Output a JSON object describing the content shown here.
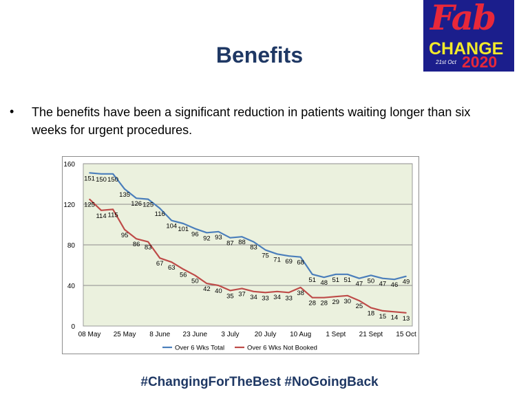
{
  "logo": {
    "fab": "Fab",
    "change": "CHANGE",
    "date": "21st Oct",
    "year": "2020"
  },
  "title": "Benefits",
  "bullet": "The benefits have been a significant reduction in patients waiting longer than six weeks for urgent procedures.",
  "footer": "#ChangingForTheBest #NoGoingBack",
  "colors": {
    "total": "#4a7ebb",
    "not_booked": "#be4b48",
    "plot_bg": "#ebf1de",
    "title": "#1f3864"
  },
  "chart_data": {
    "type": "line",
    "title": "",
    "xlabel": "",
    "ylabel": "",
    "ylim": [
      0,
      160
    ],
    "yticks": [
      0,
      40,
      80,
      120,
      160
    ],
    "xtick_labels": [
      "08 May",
      "25 May",
      "8 June",
      "23 June",
      "3 July",
      "20 July",
      "10 Aug",
      "1 Sept",
      "21 Sept",
      "15 Oct"
    ],
    "xtick_index": [
      0,
      3,
      6,
      9,
      12,
      15,
      18,
      21,
      24,
      27
    ],
    "grid": true,
    "legend_position": "bottom",
    "series": [
      {
        "name": "Over 6 Wks Total",
        "values": [
          151,
          150,
          150,
          135,
          126,
          125,
          116,
          104,
          101,
          96,
          92,
          93,
          87,
          88,
          83,
          75,
          71,
          69,
          68,
          51,
          48,
          51,
          51,
          47,
          50,
          47,
          46,
          49
        ]
      },
      {
        "name": "Over 6 Wks Not Booked",
        "values": [
          125,
          114,
          115,
          95,
          86,
          83,
          67,
          63,
          56,
          50,
          42,
          40,
          35,
          37,
          34,
          33,
          34,
          33,
          38,
          28,
          28,
          29,
          30,
          25,
          18,
          15,
          14,
          13
        ]
      }
    ]
  }
}
